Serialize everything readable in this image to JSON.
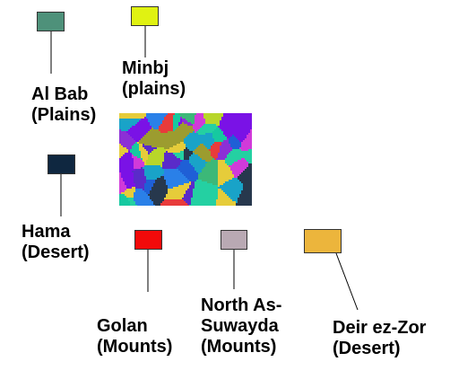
{
  "legend": [
    {
      "id": "al-bab",
      "color": "#4e917a",
      "lines": [
        "Al Bab",
        "(Plains)"
      ]
    },
    {
      "id": "minbj",
      "color": "#e0f212",
      "lines": [
        "Minbj",
        "(plains)"
      ]
    },
    {
      "id": "hama",
      "color": "#0f2740",
      "lines": [
        "Hama",
        "(Desert)"
      ]
    },
    {
      "id": "golan",
      "color": "#f20a0a",
      "lines": [
        "Golan",
        "(Mounts)"
      ]
    },
    {
      "id": "north-as-suwayda",
      "color": "#b9a9b3",
      "lines": [
        "North As-",
        "Suwayda",
        "(Mounts)"
      ]
    },
    {
      "id": "deir-ez-zor",
      "color": "#ecb53c",
      "lines": [
        "Deir ez-Zor",
        "(Desert)"
      ]
    }
  ],
  "map_palette": [
    "#7a12e6",
    "#1f5fd6",
    "#19a3c8",
    "#24d0a2",
    "#3cb878",
    "#8c2fd6",
    "#d13ad9",
    "#b8d62a",
    "#e6cc3a",
    "#2a80e8",
    "#5a2bc9",
    "#9c9c2f",
    "#27384d",
    "#e83b3b",
    "#16c9a0"
  ]
}
